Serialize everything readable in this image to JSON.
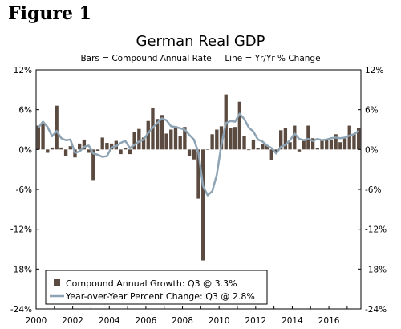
{
  "figure_label": "Figure 1",
  "chart_data": {
    "type": "bar",
    "title": "German Real GDP",
    "subtitle": "Bars = Compound Annual Rate     Line = Yr/Yr % Change",
    "xlabel": "",
    "ylabel": "",
    "ylim": [
      -24,
      12
    ],
    "y_ticks": [
      12,
      6,
      0,
      -6,
      -12,
      -18,
      -24
    ],
    "y_tick_labels": [
      "12%",
      "6%",
      "0%",
      "-6%",
      "-12%",
      "-18%",
      "-24%"
    ],
    "x_range": [
      2000,
      2017.75
    ],
    "x_ticks": [
      2000,
      2002,
      2004,
      2006,
      2008,
      2010,
      2012,
      2014,
      2016
    ],
    "x_tick_labels": [
      "2000",
      "2002",
      "2004",
      "2006",
      "2008",
      "2010",
      "2012",
      "2014",
      "2016"
    ],
    "grid": false,
    "legend_position": "bottom-left",
    "quarters": [
      "2000 Q1",
      "2000 Q2",
      "2000 Q3",
      "2000 Q4",
      "2001 Q1",
      "2001 Q2",
      "2001 Q3",
      "2001 Q4",
      "2002 Q1",
      "2002 Q2",
      "2002 Q3",
      "2002 Q4",
      "2003 Q1",
      "2003 Q2",
      "2003 Q3",
      "2003 Q4",
      "2004 Q1",
      "2004 Q2",
      "2004 Q3",
      "2004 Q4",
      "2005 Q1",
      "2005 Q2",
      "2005 Q3",
      "2005 Q4",
      "2006 Q1",
      "2006 Q2",
      "2006 Q3",
      "2006 Q4",
      "2007 Q1",
      "2007 Q2",
      "2007 Q3",
      "2007 Q4",
      "2008 Q1",
      "2008 Q2",
      "2008 Q3",
      "2008 Q4",
      "2009 Q1",
      "2009 Q2",
      "2009 Q3",
      "2009 Q4",
      "2010 Q1",
      "2010 Q2",
      "2010 Q3",
      "2010 Q4",
      "2011 Q1",
      "2011 Q2",
      "2011 Q3",
      "2011 Q4",
      "2012 Q1",
      "2012 Q2",
      "2012 Q3",
      "2012 Q4",
      "2013 Q1",
      "2013 Q2",
      "2013 Q3",
      "2013 Q4",
      "2014 Q1",
      "2014 Q2",
      "2014 Q3",
      "2014 Q4",
      "2015 Q1",
      "2015 Q2",
      "2015 Q3",
      "2015 Q4",
      "2016 Q1",
      "2016 Q2",
      "2016 Q3",
      "2016 Q4",
      "2017 Q1",
      "2017 Q2",
      "2017 Q3"
    ],
    "series": [
      {
        "name": "Compound Annual Growth: Q3 @ 3.3%",
        "type": "bar",
        "color": "#5b4a3f",
        "values": [
          3.6,
          4.0,
          -0.5,
          0.3,
          6.6,
          0.3,
          -1.0,
          0.5,
          -1.2,
          0.9,
          1.5,
          -0.5,
          -4.6,
          -0.2,
          1.8,
          1.0,
          0.9,
          1.3,
          -0.7,
          0.2,
          -0.7,
          2.6,
          3.1,
          1.8,
          4.3,
          6.3,
          4.6,
          5.2,
          2.4,
          3.0,
          3.5,
          2.0,
          3.4,
          -1.0,
          -1.5,
          -7.4,
          -16.7,
          0.0,
          2.3,
          3.0,
          3.5,
          8.3,
          3.2,
          3.4,
          7.2,
          2.0,
          -0.1,
          1.5,
          0.2,
          0.8,
          0.6,
          -1.6,
          -0.5,
          2.9,
          3.3,
          1.1,
          3.6,
          -0.3,
          1.3,
          3.6,
          1.7,
          0.2,
          1.4,
          1.6,
          1.5,
          2.3,
          1.1,
          1.8,
          3.6,
          2.4,
          3.3
        ]
      },
      {
        "name": "Year-over-Year Percent Change: Q3 @ 2.8%",
        "type": "line",
        "color": "#8ea4b4",
        "values": [
          3.3,
          4.2,
          3.4,
          2.0,
          2.8,
          1.7,
          1.4,
          1.5,
          -0.5,
          -0.3,
          0.4,
          0.6,
          -0.6,
          -0.8,
          -1.1,
          -1.0,
          0.3,
          0.5,
          1.0,
          1.3,
          0.2,
          0.7,
          1.2,
          1.5,
          2.5,
          3.3,
          4.0,
          4.7,
          4.4,
          3.5,
          3.4,
          3.2,
          3.0,
          2.2,
          1.5,
          -0.5,
          -5.5,
          -6.9,
          -6.3,
          -3.8,
          0.7,
          4.0,
          4.3,
          4.2,
          5.4,
          4.6,
          3.3,
          2.7,
          1.5,
          1.2,
          0.6,
          0.2,
          -0.6,
          0.4,
          0.7,
          1.4,
          2.4,
          1.6,
          1.4,
          1.6,
          1.3,
          1.6,
          1.4,
          1.5,
          1.7,
          1.8,
          1.7,
          1.8,
          2.1,
          2.3,
          2.8
        ]
      }
    ]
  }
}
